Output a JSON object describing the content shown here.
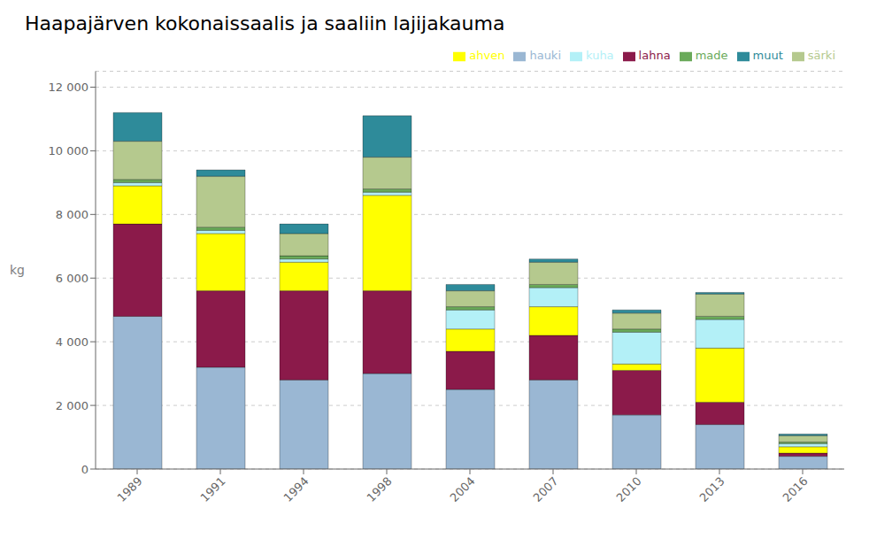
{
  "chart_data": {
    "type": "bar",
    "stacked": true,
    "title": "Haapajärven kokonaissaalis ja saaliin lajijakauma",
    "y_label": "kg",
    "categories": [
      "1989",
      "1991",
      "1994",
      "1998",
      "2004",
      "2007",
      "2010",
      "2013",
      "2016"
    ],
    "series": [
      {
        "name": "hauki",
        "color": "#9ab7d3",
        "values": [
          4800,
          3200,
          2800,
          3000,
          2500,
          2800,
          1700,
          1400,
          400
        ]
      },
      {
        "name": "lahna",
        "color": "#8b1a4a",
        "values": [
          2900,
          2400,
          2800,
          2600,
          1200,
          1400,
          1400,
          700,
          100
        ]
      },
      {
        "name": "ahven",
        "color": "#ffff00",
        "values": [
          1200,
          1800,
          900,
          3000,
          700,
          900,
          200,
          1700,
          200
        ]
      },
      {
        "name": "kuha",
        "color": "#b3f0f7",
        "values": [
          100,
          100,
          100,
          100,
          600,
          600,
          1000,
          900,
          100
        ]
      },
      {
        "name": "made",
        "color": "#6aaa5a",
        "values": [
          100,
          100,
          100,
          100,
          100,
          100,
          100,
          100,
          50
        ]
      },
      {
        "name": "särki",
        "color": "#b5c98e",
        "values": [
          1200,
          1600,
          700,
          1000,
          500,
          700,
          500,
          700,
          200
        ]
      },
      {
        "name": "muut",
        "color": "#2e8b9a",
        "values": [
          900,
          200,
          300,
          1300,
          200,
          100,
          100,
          50,
          50
        ]
      }
    ],
    "ylim": [
      0,
      12500
    ],
    "yticks": [
      0,
      {
        "value": 2000,
        "label": "2 000"
      },
      {
        "value": 4000,
        "label": "4 000"
      },
      {
        "value": 6000,
        "label": "6 000"
      },
      {
        "value": 8000,
        "label": "8 000"
      },
      {
        "value": 10000,
        "label": "10 000"
      },
      {
        "value": 12000,
        "label": "12 000"
      }
    ],
    "grid": true,
    "legend": "upper right"
  }
}
